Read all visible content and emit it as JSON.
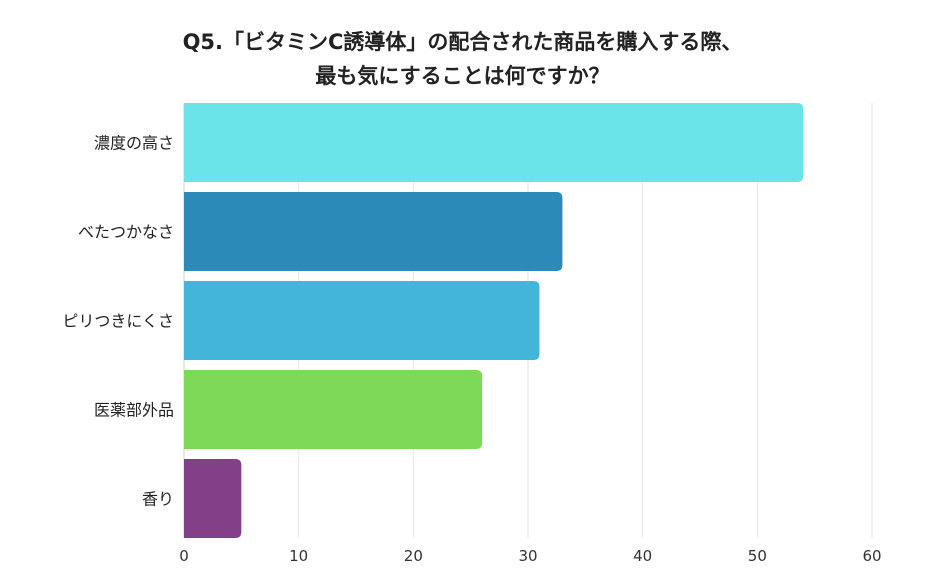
{
  "chart_data": {
    "type": "bar",
    "orientation": "horizontal",
    "title_lines": [
      "Q5.「ビタミンC誘導体」の配合された商品を購入する際、",
      "最も気にすることは何ですか？"
    ],
    "categories": [
      "濃度の高さ",
      "べたつかなさ",
      "ピリつきにくさ",
      "医薬部外品",
      "香り"
    ],
    "values": [
      54,
      33,
      31,
      26,
      5
    ],
    "colors": [
      "#6ae4e8",
      "#2b8ab8",
      "#42b5d8",
      "#7ed957",
      "#834088"
    ],
    "xlim": [
      0,
      60
    ],
    "xticks": [
      0,
      10,
      20,
      30,
      40,
      50,
      60
    ],
    "xlabel": "",
    "ylabel": "",
    "grid": true,
    "legend": "none"
  }
}
